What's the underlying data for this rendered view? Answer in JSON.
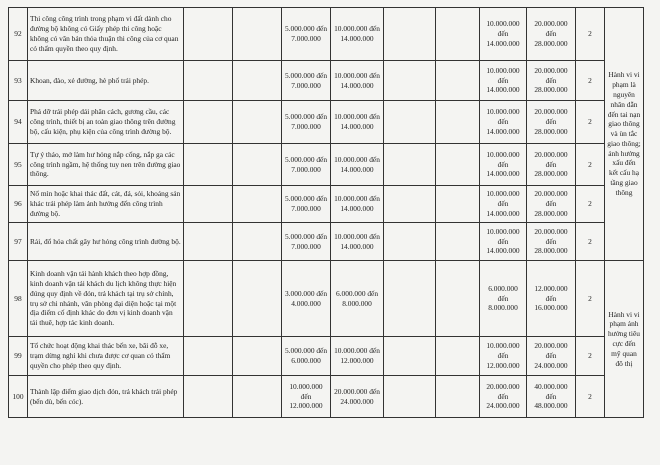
{
  "rows": [
    {
      "no": "92",
      "desc": "Thi công công trình trong phạm vi đất dành cho đường bộ không có Giấy phép thi công hoặc không có văn bản thỏa thuận thi công của cơ quan có thẩm quyền theo quy định.",
      "c3": "",
      "c4": "",
      "c5": "5.000.000 đến 7.000.000",
      "c6": "10.000.000 đến 14.000.000",
      "c7": "",
      "c8": "",
      "c9": "10.000.000 đến 14.000.000",
      "c10": "20.000.000 đến 28.000.000",
      "c11": "2"
    },
    {
      "no": "93",
      "desc": "Khoan, đào, xẻ đường, hè phố trái phép.",
      "c3": "",
      "c4": "",
      "c5": "5.000.000 đến 7.000.000",
      "c6": "10.000.000 đến 14.000.000",
      "c7": "",
      "c8": "",
      "c9": "10.000.000 đến 14.000.000",
      "c10": "20.000.000 đến 28.000.000",
      "c11": "2"
    },
    {
      "no": "94",
      "desc": "Phá dỡ trái phép dải phân cách, gương cầu, các công trình, thiết bị an toàn giao thông trên đường bộ, cấu kiện, phụ kiện của công trình đường bộ.",
      "c3": "",
      "c4": "",
      "c5": "5.000.000 đến 7.000.000",
      "c6": "10.000.000 đến 14.000.000",
      "c7": "",
      "c8": "",
      "c9": "10.000.000 đến 14.000.000",
      "c10": "20.000.000 đến 28.000.000",
      "c11": "2"
    },
    {
      "no": "95",
      "desc": "Tự ý tháo, mở làm hư hỏng nắp cống, nắp ga các công trình ngầm, hệ thống tuy nen trên đường giao thông.",
      "c3": "",
      "c4": "",
      "c5": "5.000.000 đến 7.000.000",
      "c6": "10.000.000 đến 14.000.000",
      "c7": "",
      "c8": "",
      "c9": "10.000.000 đến 14.000.000",
      "c10": "20.000.000 đến 28.000.000",
      "c11": "2"
    },
    {
      "no": "96",
      "desc": "Nổ mìn hoặc khai thác đất, cát, đá, sỏi, khoáng sản khác trái phép làm ảnh hưởng đến công trình đường bộ.",
      "c3": "",
      "c4": "",
      "c5": "5.000.000 đến 7.000.000",
      "c6": "10.000.000 đến 14.000.000",
      "c7": "",
      "c8": "",
      "c9": "10.000.000 đến 14.000.000",
      "c10": "20.000.000 đến 28.000.000",
      "c11": "2"
    },
    {
      "no": "97",
      "desc": "Rải, đổ hóa chất gây hư hỏng công trình đường bộ.",
      "c3": "",
      "c4": "",
      "c5": "5.000.000 đến 7.000.000",
      "c6": "10.000.000 đến 14.000.000",
      "c7": "",
      "c8": "",
      "c9": "10.000.000 đến 14.000.000",
      "c10": "20.000.000 đến 28.000.000",
      "c11": "2"
    },
    {
      "no": "98",
      "desc": "Kinh doanh vận tải hành khách theo hợp đồng, kinh doanh vận tải khách du lịch không thực hiện đúng quy định về đón, trả khách tại trụ sở chính, trụ sở chi nhánh, văn phòng đại diện hoặc tại một địa điểm cố định khác do đơn vị kinh doanh vận tải thuê, hợp tác kinh doanh.",
      "c3": "",
      "c4": "",
      "c5": "3.000.000 đến 4.000.000",
      "c6": "6.000.000 đến 8.000.000",
      "c7": "",
      "c8": "",
      "c9": "6.000.000 đến 8.000.000",
      "c10": "12.000.000 đến 16.000.000",
      "c11": "2"
    },
    {
      "no": "99",
      "desc": "Tổ chức hoạt động khai thác bến xe, bãi đỗ xe, trạm dừng nghỉ khi chưa được cơ quan có thẩm quyền cho phép theo quy định.",
      "c3": "",
      "c4": "",
      "c5": "5.000.000 đến 6.000.000",
      "c6": "10.000.000 đến 12.000.000",
      "c7": "",
      "c8": "",
      "c9": "10.000.000 đến 12.000.000",
      "c10": "20.000.000 đến 24.000.000",
      "c11": "2"
    },
    {
      "no": "100",
      "desc": "Thành lập điểm giao dịch đón, trả khách trái phép (bến dù, bến cóc).",
      "c3": "",
      "c4": "",
      "c5": "10.000.000 đến 12.000.000",
      "c6": "20.000.000 đến 24.000.000",
      "c7": "",
      "c8": "",
      "c9": "20.000.000 đến 24.000.000",
      "c10": "40.000.000 đến 48.000.000",
      "c11": "2"
    }
  ],
  "notes": {
    "group1": "Hành vi vi phạm là nguyên nhân dẫn đến tai nạn giao thông và ùn tắc giao thông; ảnh hưởng xấu đến kết cấu hạ tầng giao thông",
    "group2": "Hành vi vi phạm ảnh hưởng tiêu cực đến mỹ quan đô thị"
  }
}
